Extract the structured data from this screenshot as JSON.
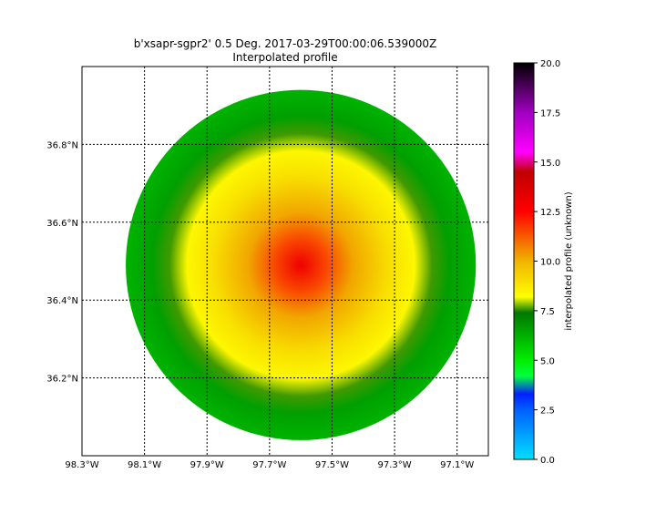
{
  "chart_data": {
    "type": "heatmap",
    "title": "b'xsapr-sgpr2' 0.5 Deg. 2017-03-29T00:00:06.539000Z",
    "subtitle": "Interpolated profile",
    "xlim": [
      -98.3,
      -97.0
    ],
    "ylim": [
      36.0,
      37.0
    ],
    "x_ticks": [
      {
        "value": -98.3,
        "label": "98.3°W"
      },
      {
        "value": -98.1,
        "label": "98.1°W"
      },
      {
        "value": -97.9,
        "label": "97.9°W"
      },
      {
        "value": -97.7,
        "label": "97.7°W"
      },
      {
        "value": -97.5,
        "label": "97.5°W"
      },
      {
        "value": -97.3,
        "label": "97.3°W"
      },
      {
        "value": -97.1,
        "label": "97.1°W"
      }
    ],
    "y_ticks": [
      {
        "value": 36.2,
        "label": "36.2°N"
      },
      {
        "value": 36.4,
        "label": "36.4°N"
      },
      {
        "value": 36.6,
        "label": "36.6°N"
      },
      {
        "value": 36.8,
        "label": "36.8°N"
      }
    ],
    "grid": true,
    "radar_center": {
      "lon": -97.6,
      "lat": 36.49
    },
    "radar_range_lon": 0.56,
    "radial_profile": [
      {
        "frac": 0.0,
        "value": 13.0
      },
      {
        "frac": 0.15,
        "value": 11.5
      },
      {
        "frac": 0.3,
        "value": 10.2
      },
      {
        "frac": 0.5,
        "value": 9.0
      },
      {
        "frac": 0.65,
        "value": 8.4
      },
      {
        "frac": 0.75,
        "value": 7.6
      },
      {
        "frac": 0.85,
        "value": 6.6
      },
      {
        "frac": 1.0,
        "value": 6.2
      }
    ],
    "colorbar": {
      "label": "interpolated profile (unknown)",
      "range": [
        0,
        20
      ],
      "ticks": [
        "0.0",
        "2.5",
        "5.0",
        "7.5",
        "10.0",
        "12.5",
        "15.0",
        "17.5",
        "20.0"
      ],
      "tick_values": [
        0,
        2.5,
        5,
        7.5,
        10,
        12.5,
        15,
        17.5,
        20
      ],
      "color_stops": [
        {
          "value": 0,
          "color": "#00e0ff"
        },
        {
          "value": 2.5,
          "color": "#0060ff"
        },
        {
          "value": 3.3,
          "color": "#0020ff"
        },
        {
          "value": 4.2,
          "color": "#00ff40"
        },
        {
          "value": 5.0,
          "color": "#00ee00"
        },
        {
          "value": 7.4,
          "color": "#007800"
        },
        {
          "value": 8.2,
          "color": "#ffff00"
        },
        {
          "value": 10.0,
          "color": "#f0b400"
        },
        {
          "value": 12.5,
          "color": "#ff0000"
        },
        {
          "value": 14.5,
          "color": "#c00000"
        },
        {
          "value": 15.5,
          "color": "#ff00ff"
        },
        {
          "value": 17.5,
          "color": "#a000c0"
        },
        {
          "value": 20.0,
          "color": "#000000"
        }
      ]
    }
  }
}
